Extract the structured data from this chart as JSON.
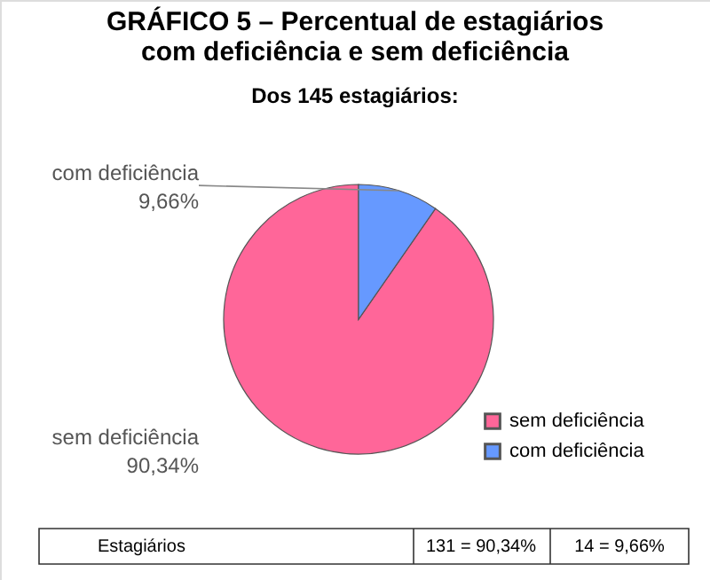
{
  "chart_data": {
    "type": "pie",
    "title": "GRÁFICO 5 – Percentual de estagiários\ncom deficiência e sem deficiência",
    "subtitle": "Dos 145 estagiários:",
    "categories": [
      "sem deficiência",
      "com deficiência"
    ],
    "values": [
      90.34,
      9.66
    ],
    "value_labels": [
      "90,34%",
      "9,66%"
    ],
    "colors": [
      "#ff6699",
      "#6699ff"
    ],
    "legend": "bottom right",
    "annotations": [
      "Estagiários",
      "131 = 90,34%",
      "14 = 9,66%"
    ]
  }
}
